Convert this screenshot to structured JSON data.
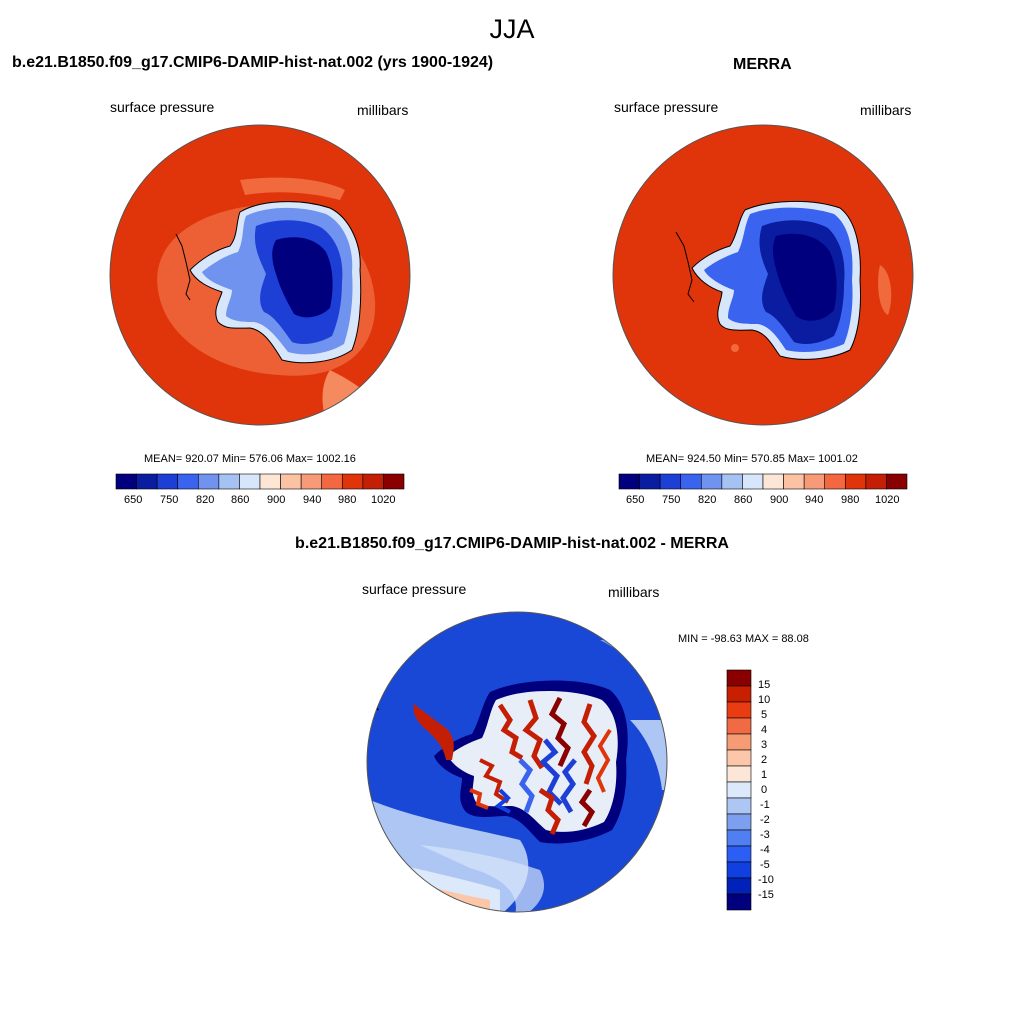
{
  "title": "JJA",
  "panels": [
    {
      "title": "b.e21.B1850.f09_g17.CMIP6-DAMIP-hist-nat.002 (yrs 1900-1924)",
      "left_label": "surface pressure",
      "right_label": "millibars",
      "stats": "MEAN= 920.07  Min= 576.06  Max= 1002.16"
    },
    {
      "title": "MERRA",
      "left_label": "surface pressure",
      "right_label": "millibars",
      "stats": "MEAN= 924.50  Min= 570.85  Max= 1001.02"
    }
  ],
  "diff_panel": {
    "title": "b.e21.B1850.f09_g17.CMIP6-DAMIP-hist-nat.002 - MERRA",
    "left_label": "surface pressure",
    "right_label": "millibars",
    "stats": "MIN = -98.63 MAX =  88.08"
  },
  "colorbar_abs": {
    "colors": [
      "#00007f",
      "#0a1ca0",
      "#1e3fd6",
      "#3a64f0",
      "#6f93ef",
      "#a6c2f2",
      "#d7e6fa",
      "#fde6d6",
      "#fbc3a4",
      "#f79a77",
      "#f36840",
      "#e0350a",
      "#c41e04",
      "#8a0000"
    ],
    "tick_labels": [
      "650",
      "750",
      "820",
      "860",
      "900",
      "940",
      "980",
      "1020"
    ]
  },
  "colorbar_diff": {
    "colors": [
      "#00007f",
      "#0022b8",
      "#1140e0",
      "#2a5ef5",
      "#507ff2",
      "#7d9ff0",
      "#aec6f4",
      "#dce9fb",
      "#fbe6d8",
      "#fbc7a8",
      "#f69c74",
      "#f06a44",
      "#ea3c12",
      "#c71f00",
      "#8a0000"
    ],
    "tick_labels": [
      "15",
      "10",
      "5",
      "4",
      "3",
      "2",
      "1",
      "0",
      "-1",
      "-2",
      "-3",
      "-4",
      "-5",
      "-10",
      "-15"
    ]
  },
  "colors": {
    "ocean_high": "#e0350a",
    "ocean_mid": "#f06a3e",
    "ice_low": "#00007f",
    "diff_bg": "#1a48d6"
  }
}
